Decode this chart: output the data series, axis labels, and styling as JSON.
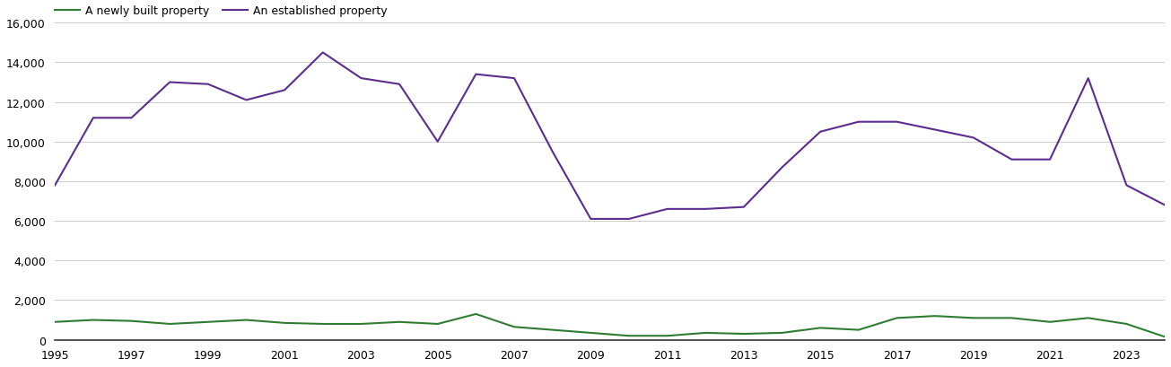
{
  "years": [
    1995,
    1996,
    1997,
    1998,
    1999,
    2000,
    2001,
    2002,
    2003,
    2004,
    2005,
    2006,
    2007,
    2008,
    2009,
    2010,
    2011,
    2012,
    2013,
    2014,
    2015,
    2016,
    2017,
    2018,
    2019,
    2020,
    2021,
    2022,
    2023,
    2024
  ],
  "established": [
    7800,
    11200,
    11200,
    13000,
    12900,
    12100,
    12600,
    14500,
    13200,
    12900,
    10000,
    13400,
    13200,
    9500,
    6100,
    6100,
    6600,
    6600,
    6700,
    8700,
    10500,
    11000,
    11000,
    10600,
    10200,
    9100,
    9100,
    13200,
    7800,
    6800
  ],
  "new_build": [
    900,
    1000,
    950,
    800,
    900,
    1000,
    850,
    800,
    800,
    900,
    800,
    1300,
    650,
    500,
    350,
    200,
    200,
    350,
    300,
    350,
    600,
    500,
    1100,
    1200,
    1100,
    1100,
    900,
    1100,
    800,
    150
  ],
  "established_color": "#5b2d8e",
  "new_build_color": "#2e7d32",
  "background_color": "#ffffff",
  "grid_color": "#cccccc",
  "legend_new": "A newly built property",
  "legend_est": "An established property",
  "ylim": [
    0,
    16000
  ],
  "yticks": [
    0,
    2000,
    4000,
    6000,
    8000,
    10000,
    12000,
    14000,
    16000
  ],
  "line_width": 1.5,
  "tick_fontsize": 9,
  "legend_fontsize": 9
}
